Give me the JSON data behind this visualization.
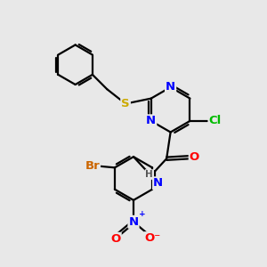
{
  "bg_color": "#e8e8e8",
  "bond_color": "#000000",
  "bond_width": 1.6,
  "atom_colors": {
    "N": "#0000ff",
    "O": "#ff0000",
    "S": "#ccaa00",
    "Cl": "#00bb00",
    "Br": "#cc6600",
    "C": "#000000",
    "H": "#555555"
  },
  "font_size": 8.5,
  "fig_size": [
    3.0,
    3.0
  ],
  "dpi": 100
}
